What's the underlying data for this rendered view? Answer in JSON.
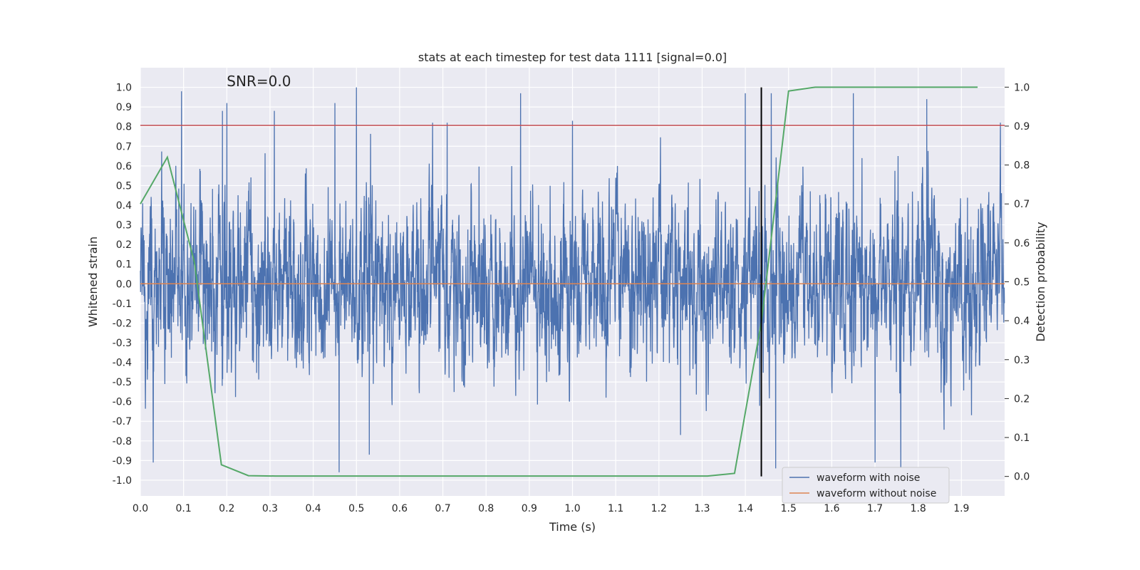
{
  "chart_data": {
    "type": "line",
    "title": "stats at each timestep for test data 1111 [signal=0.0]",
    "annotation": "SNR=0.0",
    "xlabel": "Time (s)",
    "ylabel": "Whitened strain",
    "y2label": "Detection probability",
    "xlim": [
      0.0,
      2.0
    ],
    "ylim": [
      -1.08,
      1.1
    ],
    "y2lim": [
      -0.05,
      1.05
    ],
    "grid": true,
    "legend_position": "lower-right",
    "x_ticks": [
      0.0,
      0.1,
      0.2,
      0.3,
      0.4,
      0.5,
      0.6,
      0.7,
      0.8,
      0.9,
      1.0,
      1.1,
      1.2,
      1.3,
      1.4,
      1.5,
      1.6,
      1.7,
      1.8,
      1.9
    ],
    "x_tick_labels": [
      "0.0",
      "0.1",
      "0.2",
      "0.3",
      "0.4",
      "0.5",
      "0.6",
      "0.7",
      "0.8",
      "0.9",
      "1.0",
      "1.1",
      "1.2",
      "1.3",
      "1.4",
      "1.5",
      "1.6",
      "1.7",
      "1.8",
      "1.9"
    ],
    "y_ticks": [
      1.0,
      0.9,
      0.8,
      0.7,
      0.6,
      0.5,
      0.4,
      0.3,
      0.2,
      0.1,
      0.0,
      -0.1,
      -0.2,
      -0.3,
      -0.4,
      -0.5,
      -0.6,
      -0.7,
      -0.8,
      -0.9,
      -1.0
    ],
    "y_tick_labels": [
      "1.0",
      "0.9",
      "0.8",
      "0.7",
      "0.6",
      "0.5",
      "0.4",
      "0.3",
      "0.2",
      "0.1",
      "0.0",
      "-0.1",
      "-0.2",
      "-0.3",
      "-0.4",
      "-0.5",
      "-0.6",
      "-0.7",
      "-0.8",
      "-0.9",
      "-1.0"
    ],
    "y2_ticks": [
      1.0,
      0.9,
      0.8,
      0.7,
      0.6,
      0.5,
      0.4,
      0.3,
      0.2,
      0.1,
      0.0
    ],
    "y2_tick_labels": [
      "1.0",
      "0.9",
      "0.8",
      "0.7",
      "0.6",
      "0.5",
      "0.4",
      "0.3",
      "0.2",
      "0.1",
      "0.0"
    ],
    "series": [
      {
        "name": "waveform with noise",
        "color": "#4c72b0",
        "axis": "left",
        "sample_rate_hz": 2048,
        "peaks": [
          [
            0.095,
            0.98
          ],
          [
            0.19,
            0.88
          ],
          [
            0.2,
            0.92
          ],
          [
            0.31,
            0.88
          ],
          [
            0.45,
            0.92
          ],
          [
            0.5,
            1.0
          ],
          [
            0.71,
            0.82
          ],
          [
            0.88,
            0.97
          ],
          [
            1.0,
            0.83
          ],
          [
            1.4,
            0.97
          ],
          [
            1.46,
            0.97
          ],
          [
            1.65,
            0.97
          ],
          [
            1.82,
            0.94
          ],
          [
            1.99,
            0.82
          ]
        ],
        "troughs": [
          [
            0.03,
            -0.91
          ],
          [
            0.46,
            -0.96
          ],
          [
            0.53,
            -0.87
          ],
          [
            1.25,
            -0.77
          ],
          [
            1.47,
            -0.94
          ],
          [
            1.7,
            -0.91
          ],
          [
            1.76,
            -0.94
          ]
        ]
      },
      {
        "name": "waveform without noise",
        "color": "#dd8452",
        "axis": "left",
        "x": [
          0.0,
          2.0
        ],
        "y": [
          0.0,
          0.0
        ]
      },
      {
        "name": "detection probability",
        "color": "#55a868",
        "axis": "right",
        "x": [
          0.0,
          0.0625,
          0.125,
          0.1875,
          0.25,
          0.3125,
          1.3125,
          1.375,
          1.4375,
          1.5,
          1.5625,
          1.625,
          1.9375
        ],
        "y": [
          0.7,
          0.82,
          0.55,
          0.03,
          0.002,
          0.001,
          0.001,
          0.008,
          0.4,
          0.99,
          1.0,
          1.0,
          1.0
        ]
      }
    ],
    "reference_lines": [
      {
        "orientation": "horizontal",
        "axis": "left",
        "value": 0.806,
        "color": "#c44e52"
      },
      {
        "orientation": "vertical",
        "value": 1.437,
        "color": "#000000",
        "y_from": -1.0,
        "y_to": 1.0
      }
    ]
  }
}
